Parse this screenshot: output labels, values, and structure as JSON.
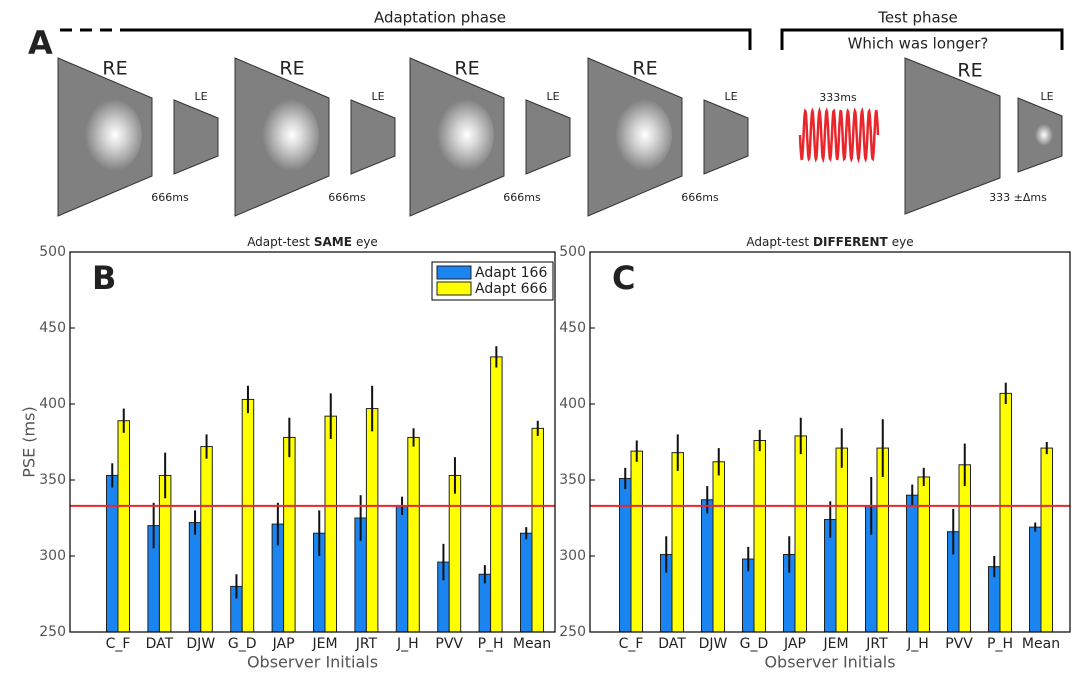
{
  "panel_a": {
    "label": "A",
    "adaptation_title": "Adaptation phase",
    "test_title": "Test phase",
    "test_question": "Which was longer?",
    "frames": [
      {
        "re": "RE",
        "le": "LE",
        "duration": "666ms"
      },
      {
        "re": "RE",
        "le": "LE",
        "duration": "666ms"
      },
      {
        "re": "RE",
        "le": "LE",
        "duration": "666ms"
      },
      {
        "re": "RE",
        "le": "LE",
        "duration": "666ms"
      }
    ],
    "test": {
      "tone": "333ms",
      "re": "RE",
      "le": "LE",
      "duration": "333 ±Δms"
    }
  },
  "chart_data": [
    {
      "type": "bar",
      "panel_label": "B",
      "title": [
        "Adapt-test",
        "SAME",
        "eye"
      ],
      "xlabel": "Observer Initials",
      "ylabel": "PSE (ms)",
      "categories": [
        "C_F",
        "DAT",
        "DJW",
        "G_D",
        "JAP",
        "JEM",
        "JRT",
        "J_H",
        "PVV",
        "P_H",
        "Mean"
      ],
      "series": [
        {
          "name": "Adapt 166",
          "color": "#1a84f0",
          "values": [
            353,
            320,
            322,
            280,
            321,
            315,
            325,
            333,
            296,
            288,
            315
          ],
          "errors": [
            8,
            15,
            8,
            8,
            14,
            15,
            15,
            6,
            12,
            6,
            4
          ]
        },
        {
          "name": "Adapt 666",
          "color": "#ffff00",
          "values": [
            389,
            353,
            372,
            403,
            378,
            392,
            397,
            378,
            353,
            431,
            384
          ],
          "errors": [
            8,
            15,
            8,
            9,
            13,
            15,
            15,
            6,
            12,
            7,
            5
          ]
        }
      ],
      "reference_line": {
        "value": 333,
        "color": "#e8262b"
      },
      "ylim": [
        250,
        500
      ],
      "yticks": [
        250,
        300,
        350,
        400,
        450,
        500
      ],
      "legend": "upper right"
    },
    {
      "type": "bar",
      "panel_label": "C",
      "title": [
        "Adapt-test",
        "DIFFERENT",
        "eye"
      ],
      "xlabel": "Observer Initials",
      "categories": [
        "C_F",
        "DAT",
        "DJW",
        "G_D",
        "JAP",
        "JEM",
        "JRT",
        "J_H",
        "PVV",
        "P_H",
        "Mean"
      ],
      "series": [
        {
          "color": "#1a84f0",
          "values": [
            351,
            301,
            337,
            298,
            301,
            324,
            333,
            340,
            316,
            293,
            319
          ],
          "errors": [
            7,
            12,
            9,
            8,
            12,
            12,
            19,
            7,
            15,
            7,
            3
          ]
        },
        {
          "color": "#ffff00",
          "values": [
            369,
            368,
            362,
            376,
            379,
            371,
            371,
            352,
            360,
            407,
            371
          ],
          "errors": [
            7,
            12,
            9,
            7,
            12,
            13,
            19,
            6,
            14,
            7,
            4
          ]
        }
      ],
      "reference_line": {
        "value": 333,
        "color": "#e8262b"
      },
      "ylim": [
        250,
        500
      ],
      "yticks": [
        250,
        300,
        350,
        400,
        450,
        500
      ]
    }
  ]
}
